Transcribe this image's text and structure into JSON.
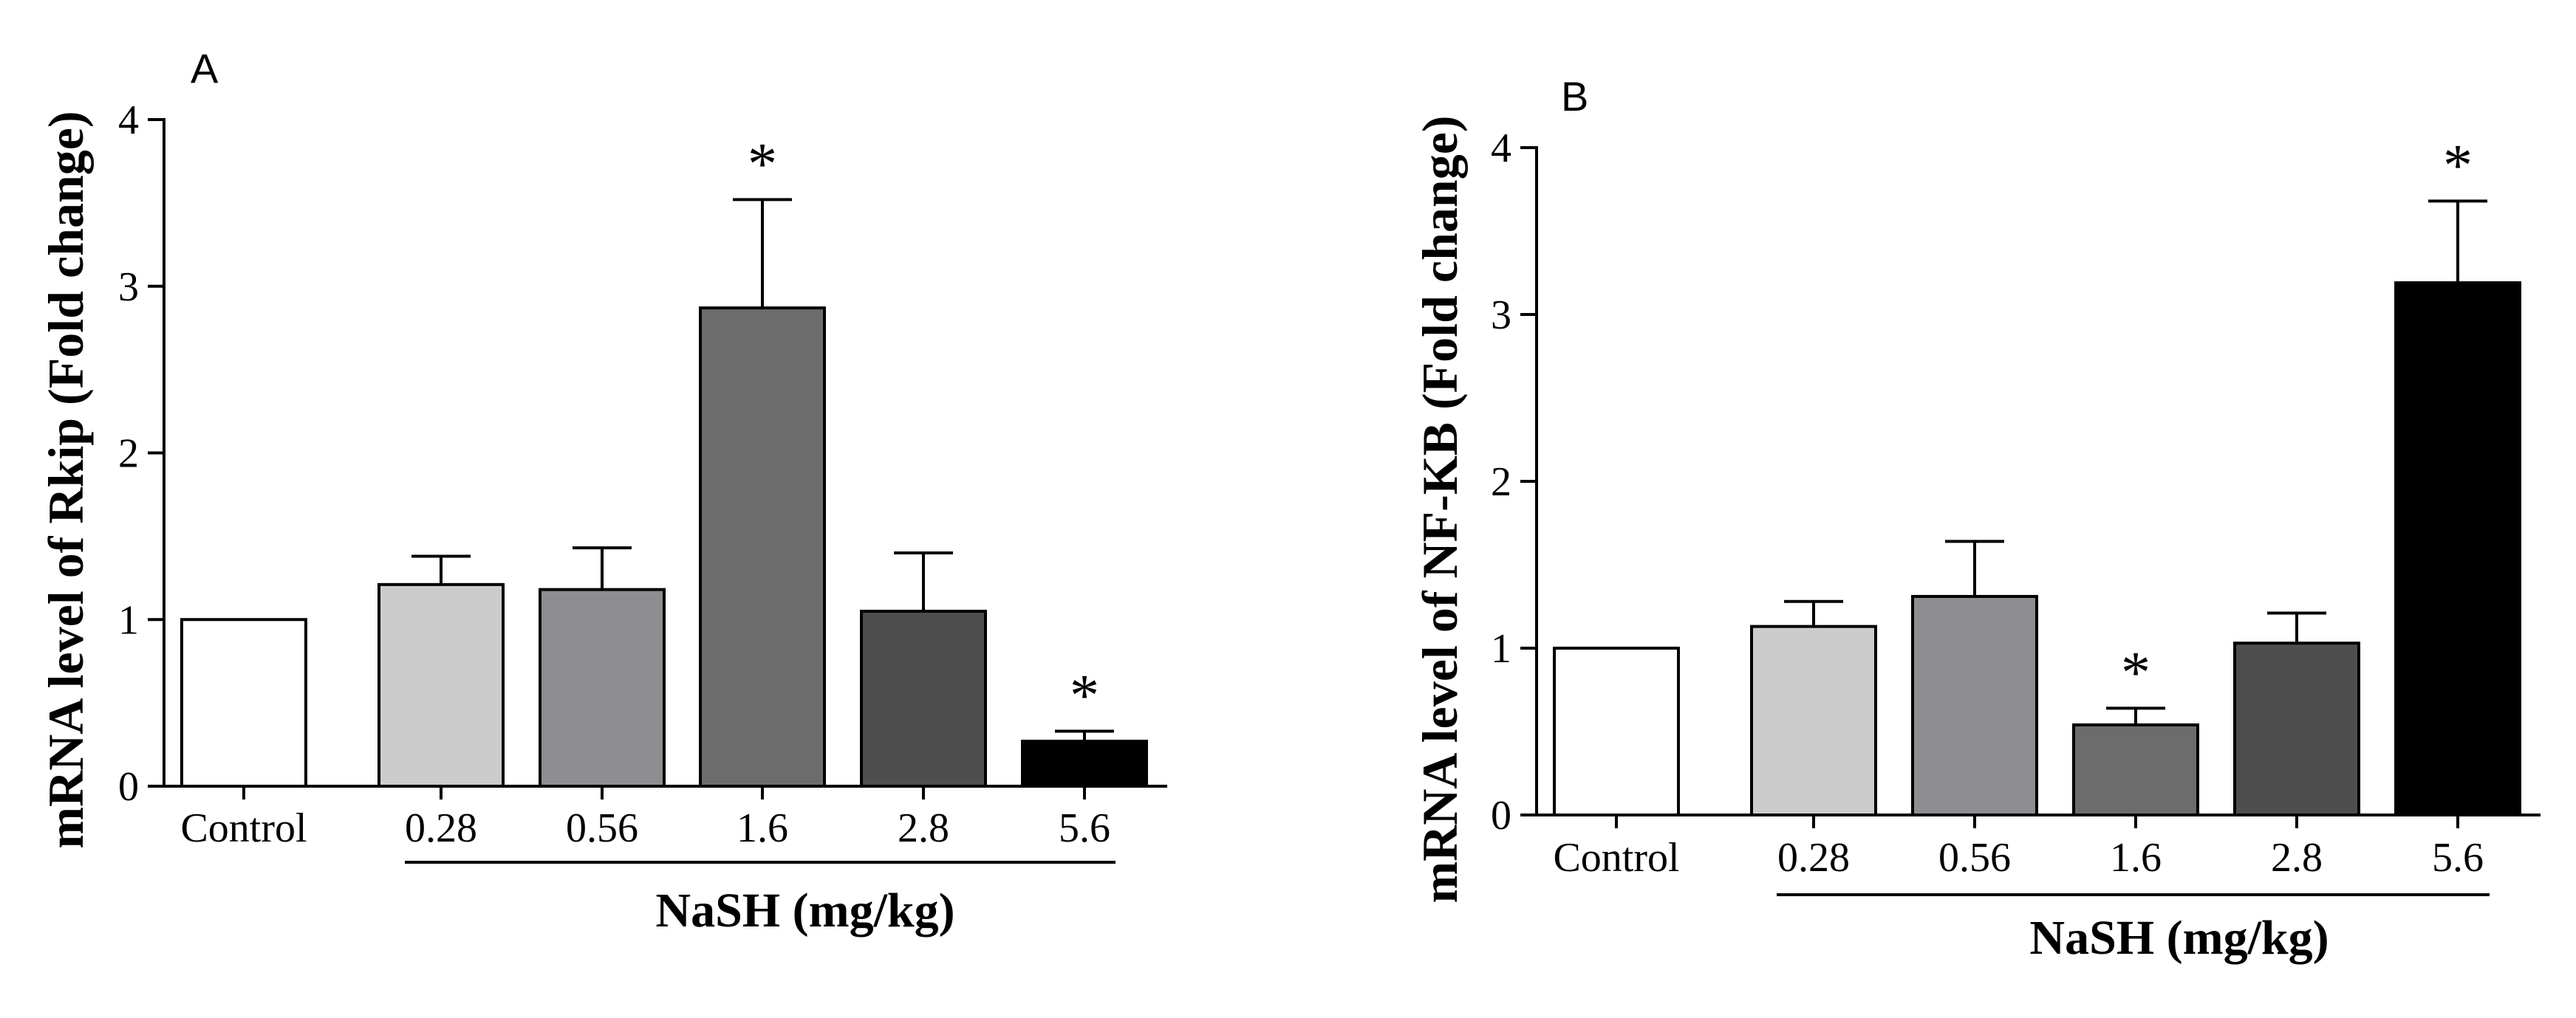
{
  "chart_data": [
    {
      "type": "bar",
      "panel_label": "A",
      "ylabel": "mRNA level of Rkip (Fold change)",
      "xlabel": "NaSH (mg/kg)",
      "ylim": [
        0,
        4
      ],
      "yticks": [
        "0",
        "1",
        "2",
        "3",
        "4"
      ],
      "categories": [
        "Control",
        "0.28",
        "0.56",
        "1.6",
        "2.8",
        "5.6"
      ],
      "values": [
        1.0,
        1.21,
        1.18,
        2.87,
        1.05,
        0.27
      ],
      "errors": [
        0,
        0.17,
        0.25,
        0.65,
        0.35,
        0.06
      ],
      "significance": [
        "",
        "",
        "",
        "*",
        "",
        "*"
      ],
      "colors": [
        "#ffffff",
        "#cccccc",
        "#8e8d91",
        "#6c6c6c",
        "#4e4e4e",
        "#000000"
      ],
      "group_categories": [
        "0.28",
        "0.56",
        "1.6",
        "2.8",
        "5.6"
      ]
    },
    {
      "type": "bar",
      "panel_label": "B",
      "ylabel": "mRNA level of NF-KB (Fold change)",
      "xlabel": "NaSH (mg/kg)",
      "ylim": [
        0,
        4
      ],
      "yticks": [
        "0",
        "1",
        "2",
        "3",
        "4"
      ],
      "categories": [
        "Control",
        "0.28",
        "0.56",
        "1.6",
        "2.8",
        "5.6"
      ],
      "values": [
        1.0,
        1.13,
        1.31,
        0.54,
        1.03,
        3.19
      ],
      "errors": [
        0,
        0.15,
        0.33,
        0.1,
        0.18,
        0.49
      ],
      "significance": [
        "",
        "",
        "",
        "*",
        "",
        "*"
      ],
      "colors": [
        "#ffffff",
        "#cccccc",
        "#8e8d91",
        "#6c6c6c",
        "#4e4e4e",
        "#000000"
      ],
      "group_categories": [
        "0.28",
        "0.56",
        "1.6",
        "2.8",
        "5.6"
      ]
    }
  ]
}
